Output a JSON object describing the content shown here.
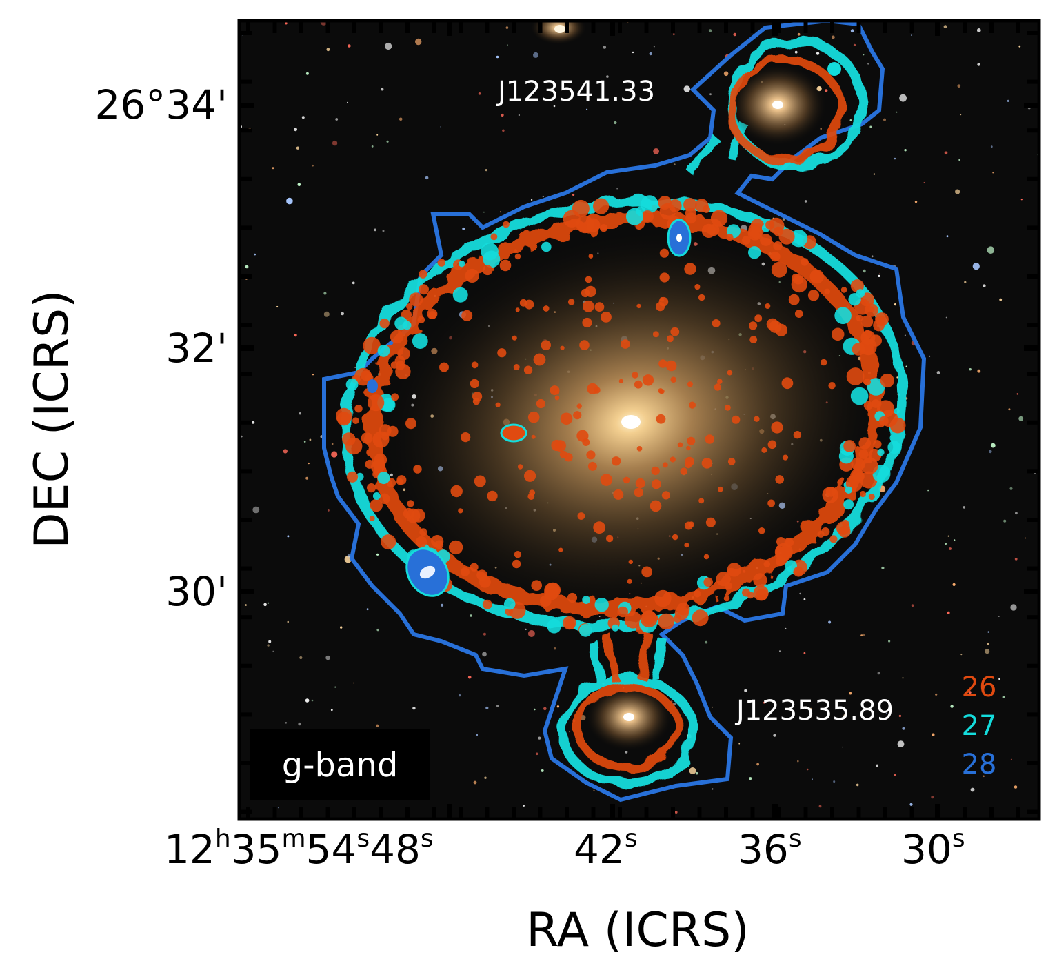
{
  "figure": {
    "band_label": "g-band",
    "colors": {
      "contour_26": "#e04a10",
      "contour_27": "#14dcdc",
      "contour_28": "#2870d8",
      "sky_background": "#0b0b0b",
      "galaxy_core": "#fff2c8"
    }
  },
  "annotations": [
    {
      "id": "main_upper_companion",
      "text": "J123541.33"
    },
    {
      "id": "lower_companion",
      "text": "J123535.89"
    }
  ],
  "legend": {
    "placement": "bottom-right",
    "entries": [
      {
        "label": "26",
        "color": "#e04a10"
      },
      {
        "label": "27",
        "color": "#14dcdc"
      },
      {
        "label": "28",
        "color": "#2870d8"
      }
    ]
  },
  "axes": {
    "xlabel": "RA (ICRS)",
    "ylabel": "DEC (ICRS)",
    "x_ticks": [
      {
        "base": "12",
        "sup1": "h",
        "mid": "35",
        "sup2": "m",
        "mid2": "54",
        "sup3": "s",
        "tail": "48",
        "sup4": "s"
      },
      {
        "base": "42",
        "sup1": "s"
      },
      {
        "base": "36",
        "sup1": "s"
      },
      {
        "base": "30",
        "sup1": "s"
      }
    ],
    "y_ticks": [
      "26°34'",
      "32'",
      "30'"
    ]
  }
}
